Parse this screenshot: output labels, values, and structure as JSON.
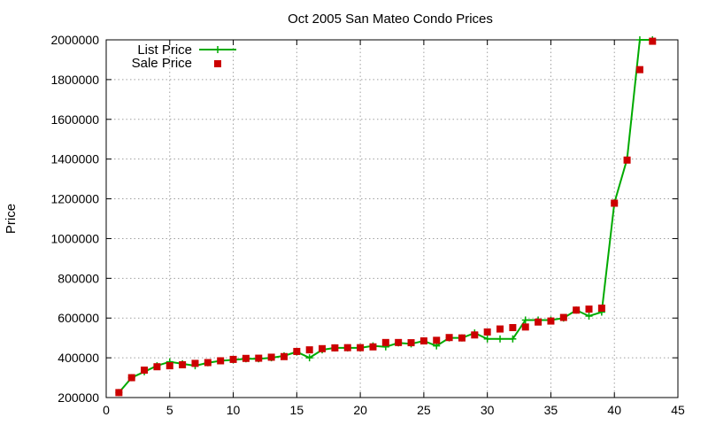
{
  "chart_data": {
    "type": "line",
    "title": "Oct 2005 San Mateo Condo Prices",
    "xlabel": "",
    "ylabel": "Price",
    "xlim": [
      0,
      45
    ],
    "ylim": [
      200000,
      2000000
    ],
    "x_ticks": [
      0,
      5,
      10,
      15,
      20,
      25,
      30,
      35,
      40,
      45
    ],
    "y_ticks": [
      200000,
      400000,
      600000,
      800000,
      1000000,
      1200000,
      1400000,
      1600000,
      1800000,
      2000000
    ],
    "grid": true,
    "legend_position": "top-left",
    "series": [
      {
        "name": "List Price",
        "style": "line-with-plus-markers",
        "color": "#00aa00",
        "x": [
          1,
          2,
          3,
          4,
          5,
          6,
          7,
          8,
          9,
          10,
          11,
          12,
          13,
          14,
          15,
          16,
          17,
          18,
          19,
          20,
          21,
          22,
          23,
          24,
          25,
          26,
          27,
          28,
          29,
          30,
          31,
          32,
          33,
          34,
          35,
          36,
          37,
          38,
          39,
          40,
          41,
          42,
          43
        ],
        "y": [
          225000,
          300000,
          330000,
          360000,
          380000,
          370000,
          360000,
          375000,
          385000,
          390000,
          395000,
          395000,
          400000,
          410000,
          430000,
          400000,
          440000,
          450000,
          450000,
          450000,
          460000,
          455000,
          475000,
          470000,
          485000,
          460000,
          500000,
          500000,
          525000,
          495000,
          495000,
          495000,
          590000,
          590000,
          590000,
          600000,
          640000,
          610000,
          630000,
          1180000,
          1400000,
          2000000,
          2000000
        ]
      },
      {
        "name": "Sale Price",
        "style": "square-markers",
        "color": "#cc0000",
        "x": [
          1,
          2,
          3,
          4,
          5,
          6,
          7,
          8,
          9,
          10,
          11,
          12,
          13,
          14,
          15,
          16,
          17,
          18,
          19,
          20,
          21,
          22,
          23,
          24,
          25,
          26,
          27,
          28,
          29,
          30,
          31,
          32,
          33,
          34,
          35,
          36,
          37,
          38,
          39,
          40,
          41,
          42,
          43
        ],
        "y": [
          225000,
          300000,
          338000,
          355000,
          360000,
          365000,
          372000,
          376000,
          385000,
          392000,
          397000,
          398000,
          403000,
          406000,
          432000,
          440000,
          446000,
          450000,
          451000,
          451000,
          455000,
          477000,
          477000,
          476000,
          485000,
          488000,
          502000,
          500000,
          515000,
          530000,
          545000,
          552000,
          555000,
          580000,
          585000,
          603000,
          640000,
          645000,
          650000,
          1178000,
          1395000,
          1850000,
          1993000
        ]
      }
    ]
  }
}
